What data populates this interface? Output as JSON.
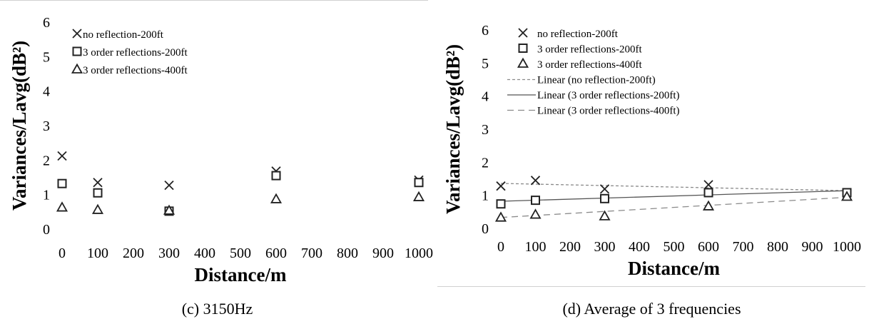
{
  "charts": [
    {
      "caption": "(c) 3150Hz",
      "chart_data": {
        "type": "scatter",
        "xlabel": "Distance/m",
        "ylabel": "Variances/Lavg(dB²)",
        "x_ticks": [
          "0",
          "100",
          "200",
          "300",
          "400",
          "500",
          "600",
          "700",
          "800",
          "900",
          "1000"
        ],
        "y_ticks": [
          "0",
          "1",
          "2",
          "3",
          "4",
          "5",
          "6"
        ],
        "xlim": [
          0,
          1000
        ],
        "ylim": [
          0,
          6
        ],
        "categories": [
          0,
          100,
          300,
          600,
          1000
        ],
        "grid": false,
        "legend_position": "top-left",
        "series": [
          {
            "name": "no reflection-200ft",
            "marker": "x",
            "values": [
              2.12,
              1.35,
              1.27,
              1.68,
              1.42
            ]
          },
          {
            "name": "3 order reflections-200ft",
            "marker": "square",
            "values": [
              1.32,
              1.05,
              0.52,
              1.55,
              1.35
            ]
          },
          {
            "name": "3 order reflections-400ft",
            "marker": "triangle",
            "values": [
              0.63,
              0.56,
              0.54,
              0.87,
              0.93
            ]
          }
        ],
        "trendlines": []
      }
    },
    {
      "caption": "(d) Average of 3 frequencies",
      "chart_data": {
        "type": "scatter",
        "xlabel": "Distance/m",
        "ylabel": "Variances/Lavg(dB²)",
        "x_ticks": [
          "0",
          "100",
          "200",
          "300",
          "400",
          "500",
          "600",
          "700",
          "800",
          "900",
          "1000"
        ],
        "y_ticks": [
          "0",
          "1",
          "2",
          "3",
          "4",
          "5",
          "6"
        ],
        "xlim": [
          0,
          1000
        ],
        "ylim": [
          0,
          6
        ],
        "categories": [
          0,
          100,
          300,
          600,
          1000
        ],
        "grid": false,
        "legend_position": "top-left",
        "series": [
          {
            "name": "no reflection-200ft",
            "marker": "x",
            "values": [
              1.28,
              1.45,
              1.19,
              1.32,
              1.08
            ]
          },
          {
            "name": "3 order reflections-200ft",
            "marker": "square",
            "values": [
              0.74,
              0.85,
              0.9,
              1.08,
              1.08
            ]
          },
          {
            "name": "3 order reflections-400ft",
            "marker": "triangle",
            "values": [
              0.33,
              0.42,
              0.37,
              0.67,
              0.96
            ]
          }
        ],
        "trendlines": [
          {
            "name": "Linear (no reflection-200ft)",
            "style": "short-dash",
            "from": [
              0,
              1.36
            ],
            "to": [
              1000,
              1.14
            ]
          },
          {
            "name": "Linear (3 order reflections-200ft)",
            "style": "solid",
            "from": [
              0,
              0.82
            ],
            "to": [
              1000,
              1.14
            ]
          },
          {
            "name": "Linear (3 order reflections-400ft)",
            "style": "long-dash",
            "from": [
              0,
              0.33
            ],
            "to": [
              1000,
              0.94
            ]
          }
        ]
      }
    }
  ]
}
